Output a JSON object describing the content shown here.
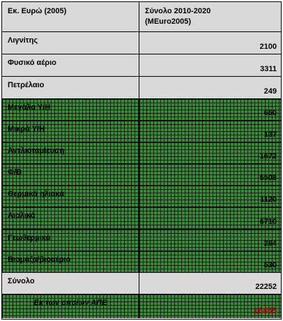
{
  "header": {
    "col1": "Εκ. Ευρώ (2005)",
    "col2": "Σύνολο 2010-2020\n(MEuro2005)"
  },
  "rows": [
    {
      "label": "Λιγνίτης",
      "value": "2100"
    },
    {
      "label": "Φυσικό αέριο",
      "value": "3311"
    },
    {
      "label": "Πετρέλαιο",
      "value": "249"
    },
    {
      "label": "Μεγάλα Υ/Η",
      "value": "650"
    },
    {
      "label": "Μικρά Υ/Η",
      "value": "137"
    },
    {
      "label": "Αντλιοταμίευση",
      "value": "1672"
    },
    {
      "label": "Φ/Β",
      "value": "5508"
    },
    {
      "label": "Θερμικά ηλιακά",
      "value": "1120"
    },
    {
      "label": "Αιολικά",
      "value": "6710"
    },
    {
      "label": "Γεωθερμικά",
      "value": "264"
    },
    {
      "label": "Βιομάζα/βιοαέριο",
      "value": "530"
    }
  ],
  "total": {
    "label": "Σύνολο",
    "value": "22252"
  },
  "res": {
    "label": "Εκ των οποίων ΑΠΕ",
    "value": "16455"
  },
  "colors": {
    "gray": "#d9d9d9",
    "green_grid": "#3a8a3a",
    "highlight": "#c00000"
  }
}
